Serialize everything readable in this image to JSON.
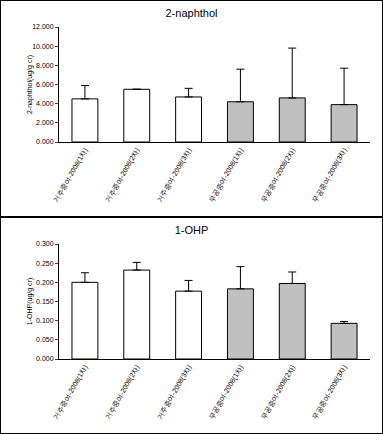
{
  "chart_data": [
    {
      "type": "bar",
      "title": "2-naphthol",
      "y_label": "2-naphthol(ug/g cr)",
      "categories": [
        "거주중여-2008(1차)",
        "거주중여-2008(2차)",
        "거주중여-2008(3차)",
        "무공중여-2008(1차)",
        "무공중여-2008(2차)",
        "무공중여-2008(3차)"
      ],
      "values": [
        4.5,
        5.5,
        4.7,
        4.2,
        4.6,
        3.9
      ],
      "errors": [
        1.4,
        0,
        0.9,
        3.4,
        5.2,
        3.8
      ],
      "colors": [
        "#ffffff",
        "#ffffff",
        "#ffffff",
        "#c0c0c0",
        "#c0c0c0",
        "#c0c0c0"
      ],
      "ylim": [
        0,
        12
      ],
      "yticks": [
        {
          "value": 0,
          "label": "0.000"
        },
        {
          "value": 2,
          "label": "2.000"
        },
        {
          "value": 4,
          "label": "4.000"
        },
        {
          "value": 6,
          "label": "6.000"
        },
        {
          "value": 8,
          "label": "8.000"
        },
        {
          "value": 10,
          "label": "10.000"
        },
        {
          "value": 12,
          "label": "12.000"
        }
      ],
      "grid": false
    },
    {
      "type": "bar",
      "title": "1-OHP",
      "y_label": "1-OHP(ug/g cr)",
      "categories": [
        "거주중여-2008(1차)",
        "거주중여-2008(2차)",
        "거주중여-2008(3차)",
        "무공중여-2008(1차)",
        "무공중여-2008(2차)",
        "무공중여-2008(3차)"
      ],
      "values": [
        0.2,
        0.232,
        0.177,
        0.183,
        0.197,
        0.093
      ],
      "errors": [
        0.025,
        0.02,
        0.028,
        0.058,
        0.03,
        0.005
      ],
      "colors": [
        "#ffffff",
        "#ffffff",
        "#ffffff",
        "#c0c0c0",
        "#c0c0c0",
        "#c0c0c0"
      ],
      "ylim": [
        0,
        0.3
      ],
      "yticks": [
        {
          "value": 0,
          "label": "0.000"
        },
        {
          "value": 0.05,
          "label": "0.050"
        },
        {
          "value": 0.1,
          "label": "0.100"
        },
        {
          "value": 0.15,
          "label": "0.150"
        },
        {
          "value": 0.2,
          "label": "0.200"
        },
        {
          "value": 0.25,
          "label": "0.250"
        },
        {
          "value": 0.3,
          "label": "0.300"
        }
      ],
      "grid": false
    }
  ]
}
